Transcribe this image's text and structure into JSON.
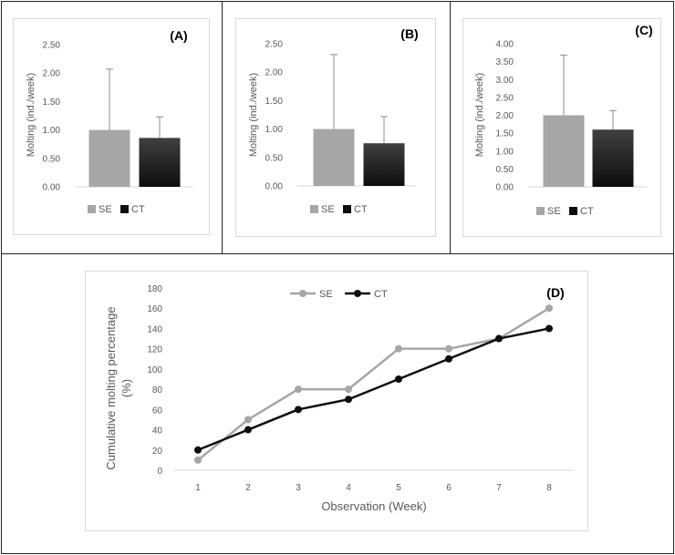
{
  "colors": {
    "SE": "#a6a6a6",
    "CT_top": "#404040",
    "CT_bottom": "#0d0d0d",
    "line_SE": "#a6a6a6",
    "line_CT": "#0d0d0d",
    "error": "#8c8c8c",
    "axis": "#d9d9d9"
  },
  "chart_data": [
    {
      "type": "bar",
      "panel_label": "(A)",
      "ylabel": "Molting (ind./week)",
      "ylim": [
        0,
        2.5
      ],
      "yticks": [
        "0.00",
        "0.50",
        "1.00",
        "1.50",
        "2.00",
        "2.50"
      ],
      "categories": [
        "SE",
        "CT"
      ],
      "values": [
        1.0,
        0.86
      ],
      "errors": [
        1.07,
        0.37
      ],
      "legend": [
        "SE",
        "CT"
      ]
    },
    {
      "type": "bar",
      "panel_label": "(B)",
      "ylabel": "Molting (ind./week)",
      "ylim": [
        0,
        2.5
      ],
      "yticks": [
        "0.00",
        "0.50",
        "1.00",
        "1.50",
        "2.00",
        "2.50"
      ],
      "categories": [
        "SE",
        "CT"
      ],
      "values": [
        1.0,
        0.75
      ],
      "errors": [
        1.31,
        0.47
      ],
      "legend": [
        "SE",
        "CT"
      ]
    },
    {
      "type": "bar",
      "panel_label": "(C)",
      "ylabel": "Molting (ind./week)",
      "ylim": [
        0,
        4.0
      ],
      "yticks": [
        "0.00",
        "0.50",
        "1.00",
        "1.50",
        "2.00",
        "2.50",
        "3.00",
        "3.50",
        "4.00"
      ],
      "categories": [
        "SE",
        "CT"
      ],
      "values": [
        2.0,
        1.6
      ],
      "errors": [
        1.68,
        0.53
      ],
      "legend": [
        "SE",
        "CT"
      ]
    },
    {
      "type": "line",
      "panel_label": "(D)",
      "xlabel": "Observation (Week)",
      "ylabel": "Cumulative molting percentage (%)",
      "ylabel_lines": [
        "Cumulative molting percentage",
        "(%)"
      ],
      "ylim": [
        0,
        180
      ],
      "yticks": [
        "0",
        "20",
        "40",
        "60",
        "80",
        "100",
        "120",
        "140",
        "160",
        "180"
      ],
      "x": [
        "1",
        "2",
        "3",
        "4",
        "5",
        "6",
        "7",
        "8"
      ],
      "series": [
        {
          "name": "SE",
          "values": [
            10,
            50,
            80,
            80,
            120,
            120,
            130,
            160
          ]
        },
        {
          "name": "CT",
          "values": [
            20,
            40,
            60,
            70,
            90,
            110,
            130,
            140
          ]
        }
      ],
      "legend_position": "top-center"
    }
  ]
}
